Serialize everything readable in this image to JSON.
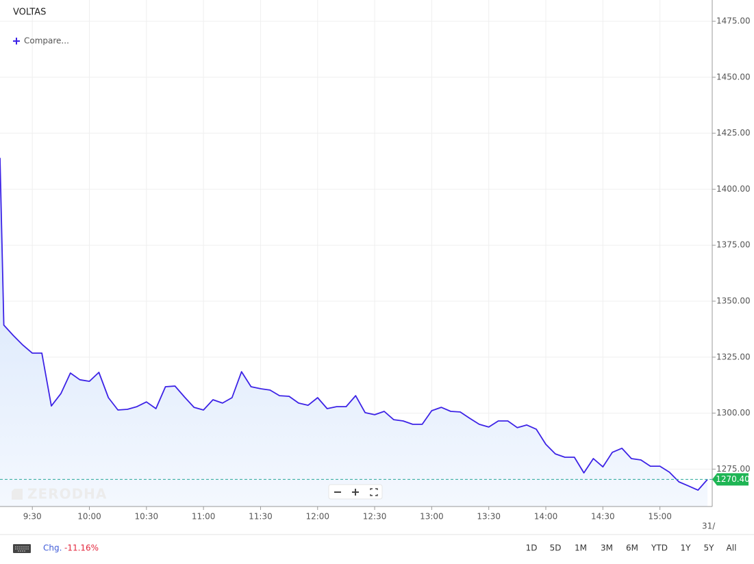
{
  "chart_data": {
    "type": "line",
    "title": "VOLTAS",
    "compare_label": "Compare...",
    "watermark": "ZERODHA",
    "x": [
      553,
      555,
      560,
      565,
      570,
      575,
      580,
      585,
      590,
      595,
      600,
      605,
      610,
      615,
      620,
      625,
      630,
      635,
      640,
      645,
      650,
      655,
      660,
      665,
      670,
      675,
      680,
      685,
      690,
      695,
      700,
      705,
      710,
      715,
      720,
      725,
      730,
      735,
      740,
      745,
      750,
      755,
      760,
      765,
      770,
      775,
      780,
      785,
      790,
      795,
      800,
      805,
      810,
      815,
      820,
      825,
      830,
      835,
      840,
      845,
      850,
      855,
      860,
      865,
      870,
      875,
      880,
      885,
      890,
      895,
      900,
      905,
      910,
      915,
      920,
      925
    ],
    "series": [
      {
        "name": "VOLTAS",
        "color": "#3c22e6",
        "values": [
          1414.0,
          1339.3,
          1334.7,
          1330.4,
          1326.8,
          1326.8,
          1303.2,
          1308.7,
          1317.9,
          1314.9,
          1314.2,
          1318.2,
          1306.9,
          1301.4,
          1301.7,
          1302.9,
          1305,
          1302,
          1311.8,
          1312.1,
          1307.2,
          1302.6,
          1301.4,
          1306,
          1304.5,
          1306.9,
          1318.5,
          1311.8,
          1310.9,
          1310.3,
          1307.8,
          1307.5,
          1304.5,
          1303.5,
          1306.9,
          1302,
          1302.9,
          1302.9,
          1307.8,
          1300.2,
          1299.3,
          1300.8,
          1297.1,
          1296.5,
          1295,
          1295,
          1301.1,
          1302.6,
          1300.8,
          1300.5,
          1297.7,
          1295,
          1293.8,
          1296.5,
          1296.5,
          1293.5,
          1294.7,
          1292.8,
          1286.1,
          1281.8,
          1280.3,
          1280.3,
          1273.3,
          1279.7,
          1276,
          1282.5,
          1284.3,
          1279.7,
          1279.1,
          1276.3,
          1276.3,
          1273.6,
          1269.3,
          1267.5,
          1265.6,
          1270.4
        ]
      }
    ],
    "last_price": {
      "value": 1270.4,
      "label": "1270.40",
      "color": "#1eb554"
    },
    "xlim": [
      553,
      927.5
    ],
    "xticks": [
      {
        "value": 570,
        "label": "9:30"
      },
      {
        "value": 600,
        "label": "10:00"
      },
      {
        "value": 630,
        "label": "10:30"
      },
      {
        "value": 660,
        "label": "11:00"
      },
      {
        "value": 690,
        "label": "11:30"
      },
      {
        "value": 720,
        "label": "12:00"
      },
      {
        "value": 750,
        "label": "12:30"
      },
      {
        "value": 780,
        "label": "13:00"
      },
      {
        "value": 810,
        "label": "13:30"
      },
      {
        "value": 840,
        "label": "14:00"
      },
      {
        "value": 870,
        "label": "14:30"
      },
      {
        "value": 900,
        "label": "15:00"
      }
    ],
    "date_label": "31/",
    "ylim": [
      1258.3,
      1484.5
    ],
    "yticks": [
      {
        "value": 1275,
        "label": "1275.00"
      },
      {
        "value": 1300,
        "label": "1300.00"
      },
      {
        "value": 1325,
        "label": "1325.00"
      },
      {
        "value": 1350,
        "label": "1350.00"
      },
      {
        "value": 1375,
        "label": "1375.00"
      },
      {
        "value": 1400,
        "label": "1400.00"
      },
      {
        "value": 1425,
        "label": "1425.00"
      },
      {
        "value": 1450,
        "label": "1450.00"
      },
      {
        "value": 1475,
        "label": "1475.00"
      }
    ],
    "grid": true,
    "change_label": "Chg.",
    "change_value": "-11.16%",
    "ranges": [
      "1D",
      "5D",
      "1M",
      "3M",
      "6M",
      "YTD",
      "1Y",
      "5Y",
      "All"
    ]
  }
}
